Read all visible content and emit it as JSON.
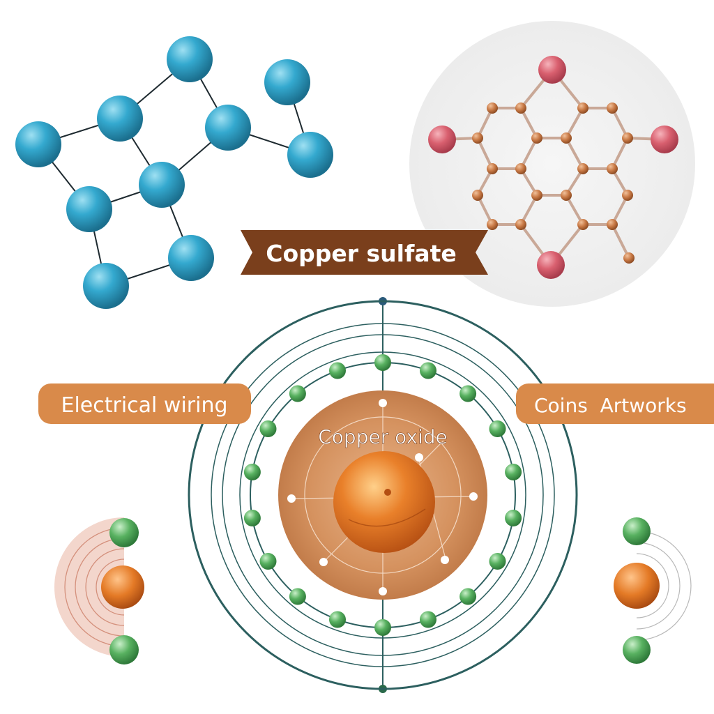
{
  "labels": {
    "top_banner": "Copper sulfate",
    "left_tag": "Electrical wiring",
    "right_tag": "Coins  Artworks",
    "core_label": "Copper oxide"
  },
  "colors": {
    "blue_atom": "#2e9fc4",
    "blue_atom_dark": "#1f7d9f",
    "red_atom": "#d9606f",
    "copper_small": "#c97a46",
    "green_electron": "#52a85a",
    "orbit": "#2c5f5f",
    "banner_brown": "#7a3f1c",
    "tag_orange": "#d98a4a",
    "core_orange": "#e07a1f"
  },
  "icons": {
    "blue_network": "molecule-network-icon",
    "hex_lattice": "hexagonal-lattice-icon",
    "atom_model": "bohr-atom-model-icon",
    "left_mini_atom": "mini-atom-icon",
    "right_mini_atom": "mini-atom-icon"
  }
}
